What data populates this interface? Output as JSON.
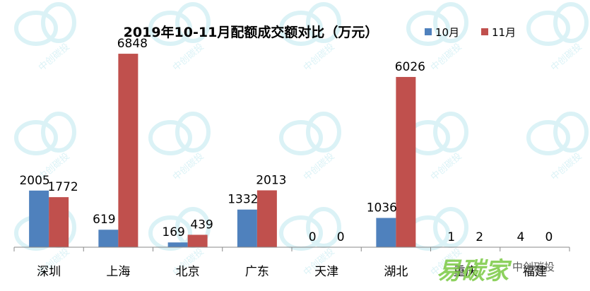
{
  "chart_data": {
    "type": "bar",
    "title": "2019年10-11月配额成交额对比（万元）",
    "categories": [
      "深圳",
      "上海",
      "北京",
      "广东",
      "天津",
      "湖北",
      "重庆",
      "福建"
    ],
    "series": [
      {
        "name": "10月",
        "values": [
          2005,
          619,
          169,
          1332,
          0,
          1036,
          1,
          4
        ],
        "color": "#4f81bd"
      },
      {
        "name": "11月",
        "values": [
          1772,
          6848,
          439,
          2013,
          0,
          6026,
          2,
          0
        ],
        "color": "#c0504d"
      }
    ],
    "ylim": [
      0,
      7500
    ],
    "grid": false,
    "legend_position": "top-right",
    "xlabel": "",
    "ylabel": ""
  },
  "watermark": {
    "text": "中创碳投",
    "brand_text": "易碳家",
    "brand_sub": "中创碳投",
    "ring_color": "#bfe9f0",
    "brand_color": "#7ac943"
  }
}
